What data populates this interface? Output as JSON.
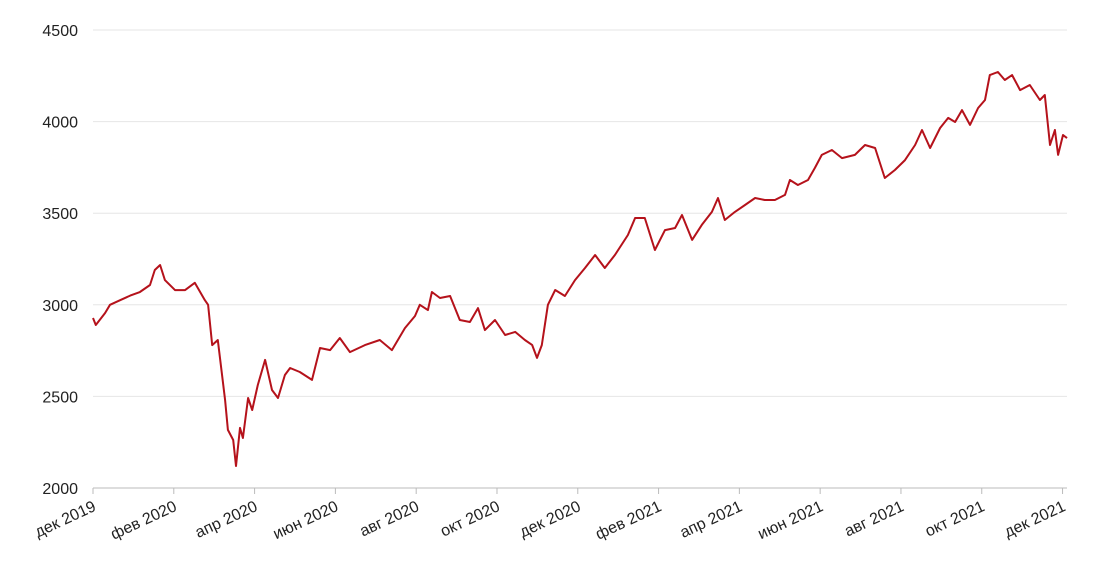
{
  "chart_data": {
    "type": "line",
    "x": [
      0,
      0.07,
      0.3,
      0.42,
      0.67,
      0.92,
      1.16,
      1.41,
      1.53,
      1.66,
      1.78,
      2.03,
      2.28,
      2.52,
      2.77,
      2.85,
      2.95,
      3.09,
      3.27,
      3.34,
      3.47,
      3.54,
      3.64,
      3.71,
      3.84,
      3.94,
      4.08,
      4.26,
      4.43,
      4.58,
      4.75,
      4.88,
      5.12,
      5.42,
      5.62,
      5.87,
      6.11,
      6.36,
      6.73,
      7.1,
      7.4,
      7.72,
      7.97,
      8.09,
      8.29,
      8.39,
      8.59,
      8.84,
      9.08,
      9.33,
      9.53,
      9.7,
      9.95,
      10.2,
      10.45,
      10.69,
      10.87,
      10.99,
      11.11,
      11.26,
      11.44,
      11.68,
      11.93,
      12.18,
      12.43,
      12.67,
      12.92,
      13.24,
      13.42,
      13.66,
      13.91,
      14.16,
      14.41,
      14.58,
      14.83,
      15.07,
      15.32,
      15.47,
      15.64,
      15.89,
      16.14,
      16.39,
      16.63,
      16.88,
      17.13,
      17.25,
      17.45,
      17.7,
      17.87,
      18.04,
      18.29,
      18.54,
      18.86,
      19.11,
      19.36,
      19.6,
      19.85,
      20.1,
      20.35,
      20.52,
      20.72,
      20.97,
      21.17,
      21.34,
      21.51,
      21.71,
      21.91,
      22.08,
      22.2,
      22.4,
      22.57,
      22.75,
      22.95,
      23.19,
      23.44,
      23.56,
      23.69,
      23.81,
      23.89,
      24.01,
      24.11
    ],
    "series": [
      {
        "color": "#b5121b",
        "values": [
          2928,
          2890,
          2955,
          3000,
          3025,
          3050,
          3070,
          3108,
          3190,
          3217,
          3135,
          3080,
          3080,
          3120,
          3025,
          3000,
          2780,
          2808,
          2480,
          2317,
          2262,
          2120,
          2328,
          2273,
          2491,
          2426,
          2562,
          2699,
          2535,
          2491,
          2617,
          2655,
          2633,
          2590,
          2764,
          2753,
          2819,
          2742,
          2780,
          2808,
          2753,
          2873,
          2939,
          3000,
          2971,
          3070,
          3037,
          3048,
          2917,
          2906,
          2982,
          2862,
          2917,
          2835,
          2852,
          2808,
          2781,
          2710,
          2780,
          3000,
          3081,
          3048,
          3135,
          3201,
          3272,
          3201,
          3272,
          3381,
          3474,
          3474,
          3299,
          3408,
          3419,
          3490,
          3354,
          3436,
          3507,
          3583,
          3463,
          3507,
          3545,
          3583,
          3572,
          3572,
          3600,
          3681,
          3654,
          3681,
          3747,
          3818,
          3845,
          3801,
          3818,
          3872,
          3856,
          3692,
          3736,
          3790,
          3872,
          3954,
          3856,
          3965,
          4020,
          3998,
          4063,
          3982,
          4074,
          4118,
          4254,
          4271,
          4227,
          4254,
          4172,
          4200,
          4118,
          4145,
          3872,
          3954,
          3818,
          3927,
          3910
        ]
      }
    ],
    "xlim": [
      0,
      24.11
    ],
    "xticks": [
      {
        "value": 0,
        "label": "дек 2019"
      },
      {
        "value": 2,
        "label": "фев 2020"
      },
      {
        "value": 4,
        "label": "апр 2020"
      },
      {
        "value": 6,
        "label": "июн 2020"
      },
      {
        "value": 8,
        "label": "авг 2020"
      },
      {
        "value": 10,
        "label": "окт 2020"
      },
      {
        "value": 12,
        "label": "дек 2020"
      },
      {
        "value": 14,
        "label": "фев 2021"
      },
      {
        "value": 16,
        "label": "апр 2021"
      },
      {
        "value": 18,
        "label": "июн 2021"
      },
      {
        "value": 20,
        "label": "авг 2021"
      },
      {
        "value": 22,
        "label": "окт 2021"
      },
      {
        "value": 24,
        "label": "дек 2021"
      }
    ],
    "ylim": [
      2000,
      4500
    ],
    "yticks": [
      2000,
      2500,
      3000,
      3500,
      4000,
      4500
    ],
    "grid": true
  }
}
